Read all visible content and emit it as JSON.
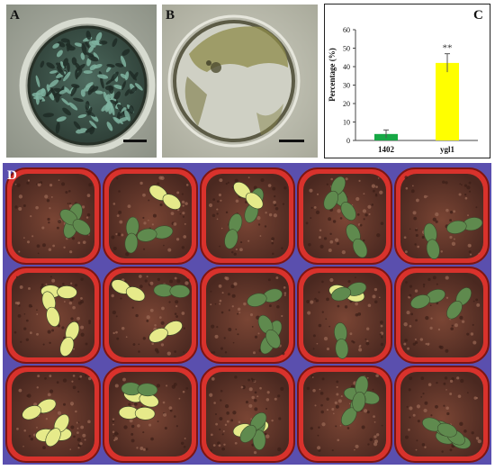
{
  "panels": {
    "a": {
      "label": "A"
    },
    "b": {
      "label": "B"
    },
    "c": {
      "label": "C"
    },
    "d": {
      "label": "D"
    }
  },
  "colors": {
    "bar_1402": "#17a845",
    "bar_ygl1": "#ffff00",
    "soil": "#6b3a2c",
    "pot": "#d8322c",
    "tray": "#5a4fae",
    "leaf_green": "#5f8a4e",
    "leaf_yellow": "#e6ea8a"
  },
  "chart_data": {
    "type": "bar",
    "categories": [
      "1402",
      "ygl1"
    ],
    "values": [
      3.5,
      42
    ],
    "errors": [
      2.2,
      5
    ],
    "annotations": [
      {
        "category": "ygl1",
        "text": "**"
      }
    ],
    "ylabel": "Percentage (%)",
    "yticks": [
      0,
      10,
      20,
      30,
      40,
      50,
      60
    ],
    "ylim": [
      0,
      60
    ],
    "grid": false,
    "legend": "none"
  }
}
